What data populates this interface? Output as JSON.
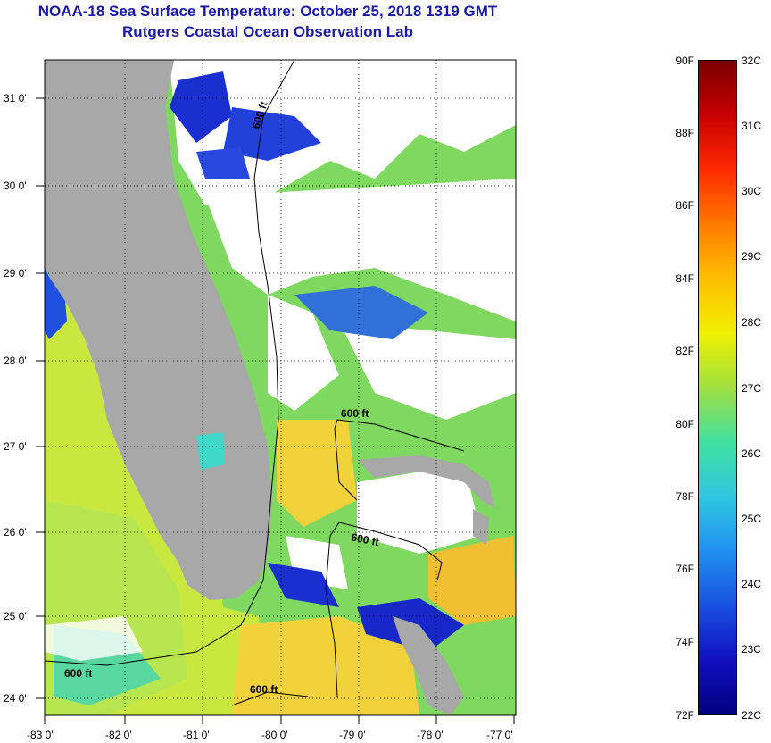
{
  "header": {
    "title_line1": "NOAA-18 Sea Surface Temperature:  October 25, 2018 1319 GMT",
    "title_line2": "Rutgers Coastal Ocean Observation Lab"
  },
  "map": {
    "lon_labels": [
      "-83 0'",
      "-82 0'",
      "-81 0'",
      "-80 0'",
      "-79 0'",
      "-78 0'",
      "-77 0'"
    ],
    "lat_labels": [
      "31 0'",
      "30 0'",
      "29 0'",
      "28 0'",
      "27 0'",
      "26 0'",
      "25 0'",
      "24 0'"
    ],
    "isobath_labels": [
      "600 ft",
      "600 ft",
      "600 ft",
      "600 ft",
      "600 ft"
    ],
    "colors": {
      "land": "#a8a8a8",
      "cloud": "#ffffff",
      "shelf_water": "#c8e840",
      "offshore_water": "#7fd860",
      "warm_water": "#f2d23a",
      "cold_patch": "#1a2fd0",
      "teal_patch": "#40d8c8"
    }
  },
  "colorbar": {
    "fahrenheit_labels": [
      "90F",
      "88F",
      "86F",
      "84F",
      "82F",
      "80F",
      "78F",
      "76F",
      "74F",
      "72F"
    ],
    "celsius_labels": [
      "32C",
      "31C",
      "30C",
      "29C",
      "28C",
      "27C",
      "26C",
      "25C",
      "24C",
      "23C",
      "22C"
    ],
    "gradient_stops": [
      "#7a0000",
      "#c80000",
      "#ff2a00",
      "#ff7a00",
      "#ffbf00",
      "#f0f000",
      "#a0e040",
      "#40e0a0",
      "#30c8e0",
      "#2090f0",
      "#1850e0",
      "#1010c0",
      "#000080"
    ]
  }
}
